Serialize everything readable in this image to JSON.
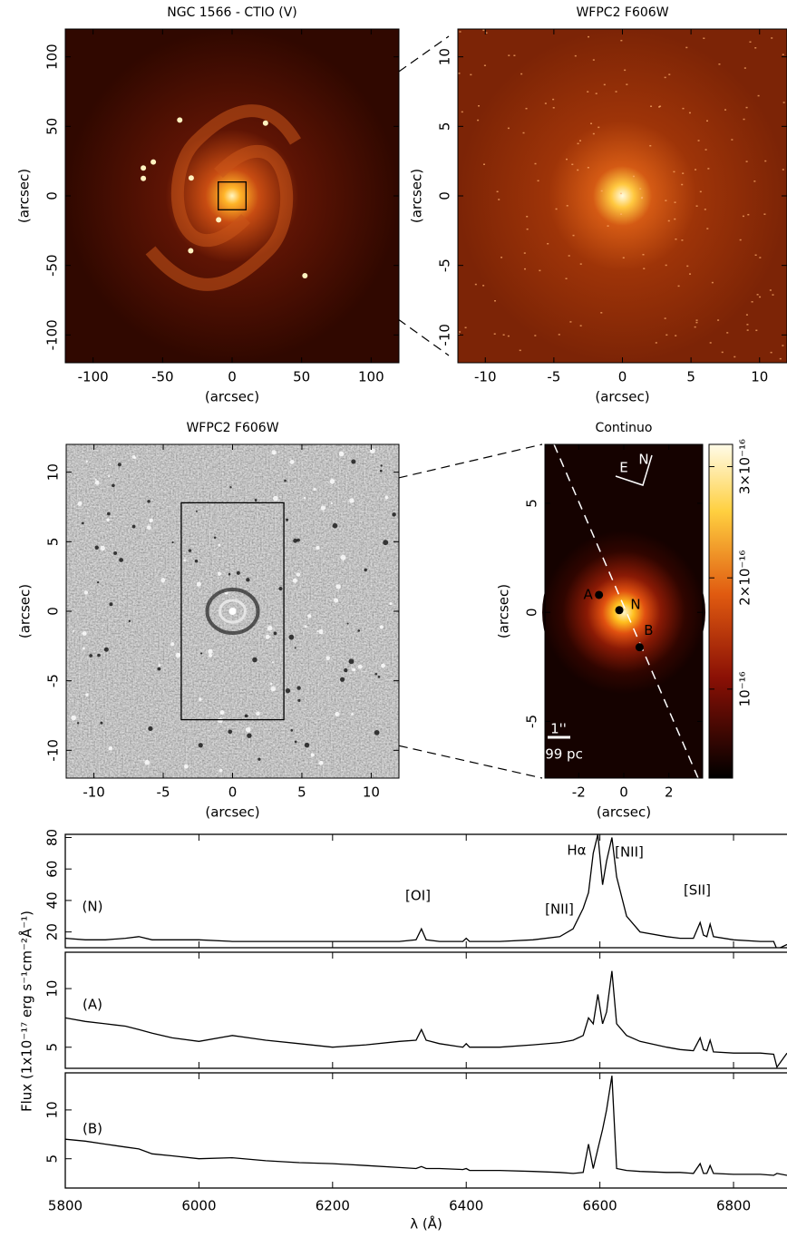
{
  "chart_data": [
    {
      "type": "image",
      "title": "NGC 1566 - CTIO (V)",
      "x_label": "(arcsec)",
      "y_label": "(arcsec)",
      "xlim": [
        -120,
        120
      ],
      "ylim": [
        -120,
        120
      ],
      "xticks": [
        -100,
        -50,
        0,
        50,
        100
      ],
      "yticks": [
        -100,
        -50,
        0,
        50,
        100
      ],
      "inset_box": {
        "xlim": [
          -10,
          10
        ],
        "ylim": [
          -10,
          10
        ]
      }
    },
    {
      "type": "image",
      "title": "WFPC2 F606W",
      "x_label": "(arcsec)",
      "y_label": "(arcsec)",
      "xlim": [
        -12,
        12
      ],
      "ylim": [
        -12,
        12
      ],
      "xticks": [
        -10,
        -5,
        0,
        5,
        10
      ],
      "yticks": [
        -10,
        -5,
        0,
        5,
        10
      ]
    },
    {
      "type": "image",
      "title": "WFPC2 F606W",
      "x_label": "(arcsec)",
      "y_label": "(arcsec)",
      "xlim": [
        -12,
        12
      ],
      "ylim": [
        -12,
        12
      ],
      "xticks": [
        -10,
        -5,
        0,
        5,
        10
      ],
      "yticks": [
        -10,
        -5,
        0,
        5,
        10
      ],
      "inset_box": {
        "xlim": [
          -3.7,
          3.7
        ],
        "ylim": [
          -7.8,
          7.8
        ]
      }
    },
    {
      "type": "image",
      "title": "Continuo",
      "x_label": "(arcsec)",
      "y_label": "(arcsec)",
      "xlim": [
        -3.5,
        3.5
      ],
      "ylim": [
        -7.6,
        7.7
      ],
      "xticks": [
        -2,
        0,
        2
      ],
      "yticks": [
        -5,
        0,
        5
      ],
      "colorbar": {
        "lim": [
          2e-17,
          3.2e-16
        ],
        "ticks": [
          {
            "value": 1e-16,
            "label": "10⁻¹⁶"
          },
          {
            "value": 2e-16,
            "label": "2×10⁻¹⁶"
          },
          {
            "value": 3e-16,
            "label": "3×10⁻¹⁶"
          }
        ]
      },
      "markers": [
        {
          "label": "A",
          "x": -1.1,
          "y": 0.8
        },
        {
          "label": "N",
          "x": -0.2,
          "y": 0.1
        },
        {
          "label": "B",
          "x": 0.7,
          "y": -1.6
        }
      ],
      "annotations": [
        "N",
        "E",
        "1''",
        "99 pc"
      ]
    },
    {
      "type": "line",
      "x_label": "λ (Å)",
      "y_label": "Flux (1x10⁻¹⁷ erg s⁻¹cm⁻²Å⁻¹)",
      "xlim": [
        5800,
        6880
      ],
      "xticks": [
        5800,
        6000,
        6200,
        6400,
        6600,
        6800
      ],
      "x": [
        5800,
        5830,
        5860,
        5890,
        5910,
        5930,
        5960,
        6000,
        6050,
        6100,
        6150,
        6200,
        6250,
        6300,
        6325,
        6333,
        6340,
        6360,
        6395,
        6400,
        6405,
        6450,
        6500,
        6540,
        6560,
        6575,
        6583,
        6590,
        6597,
        6604,
        6610,
        6618,
        6625,
        6640,
        6660,
        6700,
        6720,
        6740,
        6750,
        6755,
        6760,
        6765,
        6770,
        6800,
        6840,
        6860,
        6865,
        6880
      ],
      "series": [
        {
          "name": "(N)",
          "color": "#000000",
          "ylim": [
            10,
            82
          ],
          "yticks": [
            20,
            40,
            60,
            80
          ],
          "values": [
            16,
            15,
            15,
            16,
            17,
            15,
            15,
            15,
            14,
            14,
            14,
            14,
            14,
            14,
            15,
            22,
            15,
            14,
            14,
            16,
            14,
            14,
            15,
            17,
            22,
            35,
            45,
            70,
            82,
            50,
            65,
            80,
            55,
            30,
            20,
            17,
            16,
            16,
            26,
            18,
            17,
            25,
            17,
            15,
            14,
            14,
            9,
            12
          ]
        },
        {
          "name": "(A)",
          "color": "#000000",
          "ylim": [
            3.2,
            13.1
          ],
          "yticks": [
            5,
            10
          ],
          "values": [
            7.5,
            7.2,
            7,
            6.8,
            6.5,
            6.2,
            5.8,
            5.5,
            6,
            5.6,
            5.3,
            5,
            5.2,
            5.5,
            5.6,
            6.5,
            5.6,
            5.3,
            5,
            5.3,
            5,
            5,
            5.2,
            5.4,
            5.6,
            6,
            7.5,
            7,
            9.5,
            7,
            8,
            11.5,
            7,
            6,
            5.5,
            5,
            4.8,
            4.7,
            5.8,
            4.8,
            4.7,
            5.6,
            4.6,
            4.5,
            4.5,
            4.4,
            3.3,
            4.5
          ]
        },
        {
          "name": "(B)",
          "color": "#000000",
          "ylim": [
            2,
            13.8
          ],
          "yticks": [
            5,
            10
          ],
          "values": [
            7,
            6.8,
            6.5,
            6.2,
            6,
            5.5,
            5.3,
            5,
            5.1,
            4.8,
            4.6,
            4.5,
            4.3,
            4.1,
            4,
            4.2,
            4,
            4,
            3.9,
            4,
            3.8,
            3.8,
            3.7,
            3.6,
            3.5,
            3.6,
            6.5,
            4,
            6,
            8,
            10,
            13.5,
            4,
            3.8,
            3.7,
            3.6,
            3.6,
            3.5,
            4.5,
            3.5,
            3.5,
            4.3,
            3.5,
            3.4,
            3.4,
            3.3,
            3.5,
            3.3
          ]
        }
      ],
      "annotations": [
        "[OI]",
        "[NII]",
        "Hα",
        "[NII]",
        "[SII]"
      ]
    }
  ]
}
